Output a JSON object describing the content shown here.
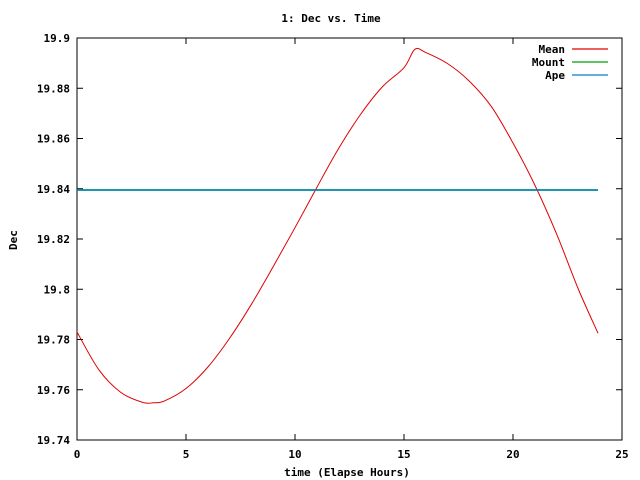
{
  "chart_data": {
    "type": "line",
    "title": "1: Dec vs. Time",
    "xlabel": "time (Elapse Hours)",
    "ylabel": "Dec",
    "xlim": [
      0,
      25
    ],
    "ylim": [
      19.74,
      19.9
    ],
    "x_ticks": [
      "0",
      "5",
      "10",
      "15",
      "20",
      "25"
    ],
    "y_ticks": [
      "19.74",
      "19.76",
      "19.78",
      "19.8",
      "19.82",
      "19.84",
      "19.86",
      "19.88",
      "19.9"
    ],
    "grid": false,
    "legend_position": "top-right",
    "series": [
      {
        "name": "Mean",
        "color": "#e00000",
        "x": [
          0,
          1,
          2,
          3,
          3.5,
          4,
          5,
          6,
          7,
          8,
          9,
          10,
          11,
          12,
          13,
          14,
          15,
          15.5,
          16,
          17,
          18,
          19,
          20,
          21,
          22,
          23,
          23.9
        ],
        "y": [
          19.783,
          19.768,
          19.759,
          19.755,
          19.7548,
          19.7555,
          19.7605,
          19.769,
          19.7805,
          19.794,
          19.809,
          19.8245,
          19.8405,
          19.856,
          19.8695,
          19.8805,
          19.8882,
          19.8955,
          19.8942,
          19.8898,
          19.8828,
          19.8728,
          19.8582,
          19.8415,
          19.822,
          19.8,
          19.7825
        ]
      },
      {
        "name": "Mount",
        "color": "#00a000",
        "x": [
          0,
          23.9
        ],
        "y": [
          19.8395,
          19.8395
        ]
      },
      {
        "name": "Ape",
        "color": "#0080c0",
        "x": [
          0,
          23.9
        ],
        "y": [
          19.8395,
          19.8395
        ]
      }
    ]
  }
}
